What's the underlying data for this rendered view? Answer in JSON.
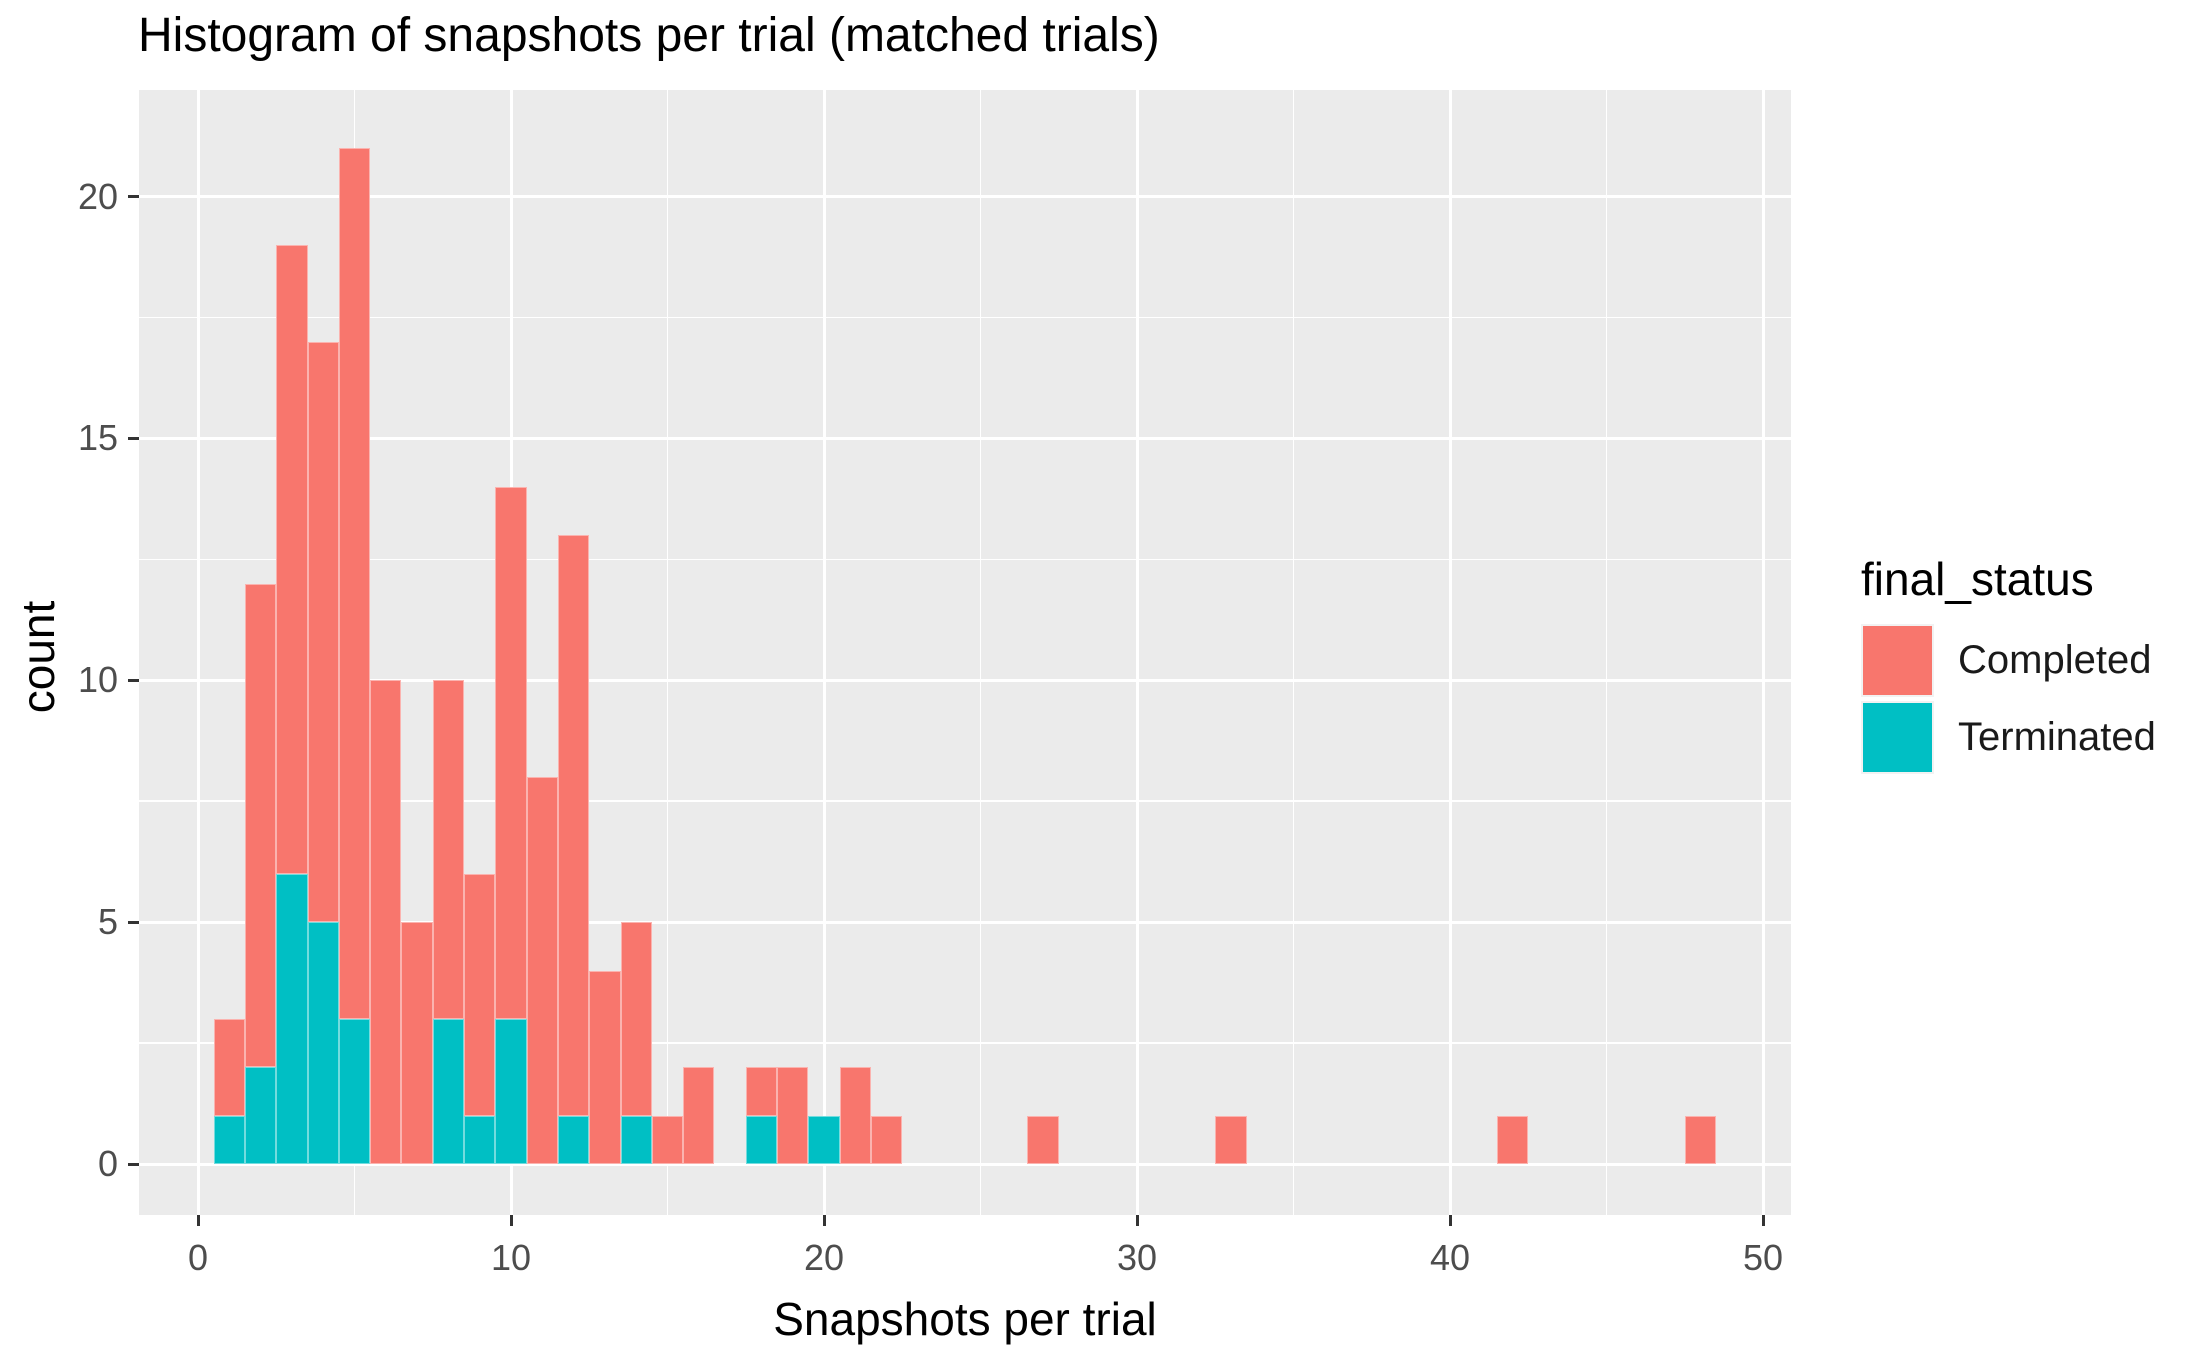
{
  "title": "Histogram of snapshots per trial (matched trials)",
  "axes": {
    "x_label": "Snapshots per trial",
    "y_label": "count",
    "x_tick_labels": [
      "0",
      "10",
      "20",
      "30",
      "40",
      "50"
    ],
    "y_tick_labels": [
      "0",
      "5",
      "10",
      "15",
      "20"
    ]
  },
  "legend": {
    "title": "final_status",
    "items": [
      {
        "label": "Completed",
        "color": "#F8766D"
      },
      {
        "label": "Terminated",
        "color": "#00BFC4"
      }
    ]
  },
  "chart_data": {
    "type": "bar",
    "subtype": "stacked-histogram",
    "title": "Histogram of snapshots per trial (matched trials)",
    "xlabel": "Snapshots per trial",
    "ylabel": "count",
    "binwidth": 1,
    "xlim": [
      -1.9,
      50.9
    ],
    "ylim": [
      -1.05,
      22.05
    ],
    "x_ticks": [
      0,
      10,
      20,
      30,
      40,
      50
    ],
    "x_minor_ticks": [
      5,
      15,
      25,
      35,
      45
    ],
    "y_ticks": [
      0,
      5,
      10,
      15,
      20
    ],
    "y_minor_ticks": [
      2.5,
      7.5,
      12.5,
      17.5
    ],
    "grid": true,
    "panel_bg": "#EBEBEB",
    "grid_color": "#FFFFFF",
    "legend_position": "right",
    "series": [
      {
        "name": "Completed",
        "color": "#F8766D"
      },
      {
        "name": "Terminated",
        "color": "#00BFC4"
      }
    ],
    "bins": [
      {
        "x": 1,
        "completed": 2,
        "terminated": 1
      },
      {
        "x": 2,
        "completed": 10,
        "terminated": 2
      },
      {
        "x": 3,
        "completed": 13,
        "terminated": 6
      },
      {
        "x": 4,
        "completed": 12,
        "terminated": 5
      },
      {
        "x": 5,
        "completed": 18,
        "terminated": 3
      },
      {
        "x": 6,
        "completed": 10,
        "terminated": 0
      },
      {
        "x": 7,
        "completed": 5,
        "terminated": 0
      },
      {
        "x": 8,
        "completed": 7,
        "terminated": 3
      },
      {
        "x": 9,
        "completed": 5,
        "terminated": 1
      },
      {
        "x": 10,
        "completed": 11,
        "terminated": 3
      },
      {
        "x": 11,
        "completed": 8,
        "terminated": 0
      },
      {
        "x": 12,
        "completed": 12,
        "terminated": 1
      },
      {
        "x": 13,
        "completed": 4,
        "terminated": 0
      },
      {
        "x": 14,
        "completed": 4,
        "terminated": 1
      },
      {
        "x": 15,
        "completed": 1,
        "terminated": 0
      },
      {
        "x": 16,
        "completed": 2,
        "terminated": 0
      },
      {
        "x": 18,
        "completed": 1,
        "terminated": 1
      },
      {
        "x": 19,
        "completed": 2,
        "terminated": 0
      },
      {
        "x": 20,
        "completed": 0,
        "terminated": 1
      },
      {
        "x": 21,
        "completed": 2,
        "terminated": 0
      },
      {
        "x": 22,
        "completed": 1,
        "terminated": 0
      },
      {
        "x": 27,
        "completed": 1,
        "terminated": 0
      },
      {
        "x": 33,
        "completed": 1,
        "terminated": 0
      },
      {
        "x": 42,
        "completed": 1,
        "terminated": 0
      },
      {
        "x": 48,
        "completed": 1,
        "terminated": 0
      }
    ]
  }
}
